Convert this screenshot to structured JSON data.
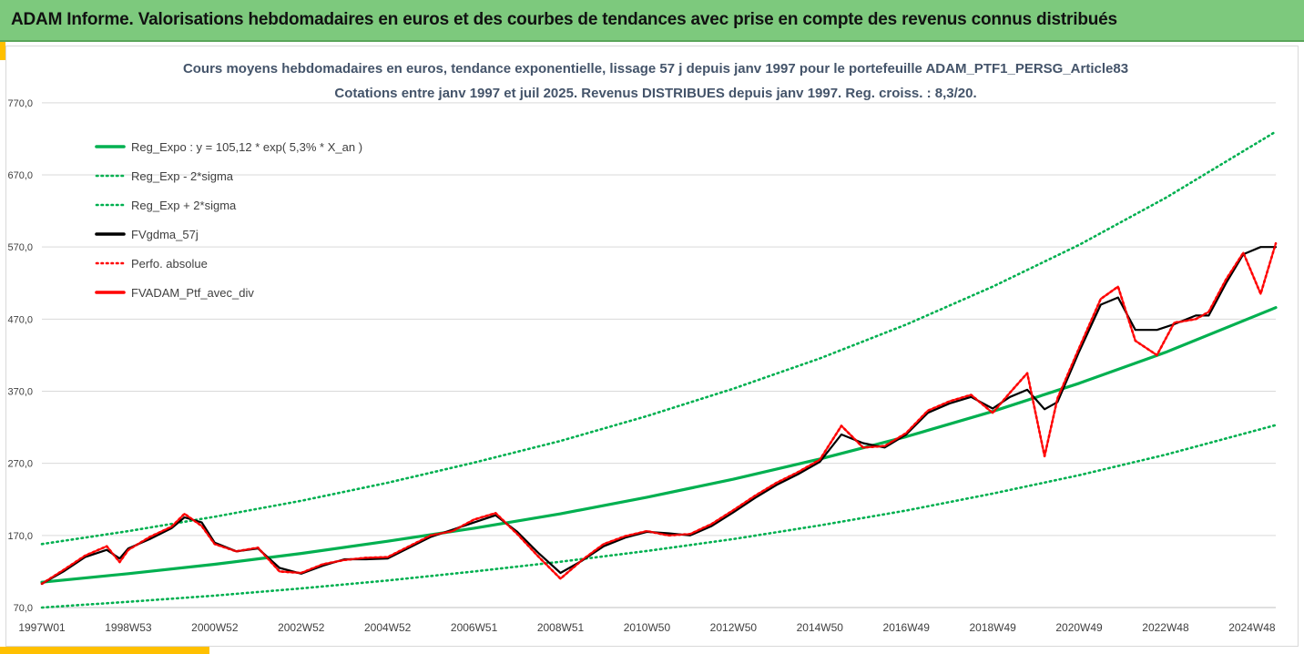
{
  "banner": {
    "title": "ADAM Informe. Valorisations hebdomadaires en euros et des courbes de tendances avec prise en compte des revenus connus distribués"
  },
  "chart_data": {
    "type": "line",
    "title_line1": "Cours moyens hebdomadaires  en euros, tendance exponentielle, lissage 57 j depuis janv 1997 pour le portefeuille ADAM_PTF1_PERSG_Article83",
    "title_line2": "Cotations entre janv 1997 et juil 2025. Revenus DISTRIBUES depuis janv 1997. Reg. croiss. : 8,3/20.",
    "xlabel": "",
    "ylabel": "",
    "x_range": [
      1997.0,
      2025.55
    ],
    "ylim": [
      70,
      790
    ],
    "y_ticks": [
      {
        "value": 70,
        "label": "70,0"
      },
      {
        "value": 170,
        "label": "170,0"
      },
      {
        "value": 270,
        "label": "270,0"
      },
      {
        "value": 370,
        "label": "370,0"
      },
      {
        "value": 470,
        "label": "470,0"
      },
      {
        "value": 570,
        "label": "570,0"
      },
      {
        "value": 670,
        "label": "670,0"
      },
      {
        "value": 770,
        "label": "770,0"
      }
    ],
    "x_ticks": [
      {
        "value": 1997.0,
        "label": "1997W01"
      },
      {
        "value": 1999.0,
        "label": "1998W53"
      },
      {
        "value": 2001.0,
        "label": "2000W52"
      },
      {
        "value": 2003.0,
        "label": "2002W52"
      },
      {
        "value": 2005.0,
        "label": "2004W52"
      },
      {
        "value": 2007.0,
        "label": "2006W51"
      },
      {
        "value": 2009.0,
        "label": "2008W51"
      },
      {
        "value": 2011.0,
        "label": "2010W50"
      },
      {
        "value": 2013.0,
        "label": "2012W50"
      },
      {
        "value": 2015.0,
        "label": "2014W50"
      },
      {
        "value": 2017.0,
        "label": "2016W49"
      },
      {
        "value": 2019.0,
        "label": "2018W49"
      },
      {
        "value": 2021.0,
        "label": "2020W49"
      },
      {
        "value": 2023.0,
        "label": "2022W48"
      },
      {
        "value": 2025.0,
        "label": "2024W48"
      }
    ],
    "grid": "horizontal",
    "legend_position": "top-left",
    "colors": {
      "reg_green": "#00b050",
      "smooth_black": "#000000",
      "perf_red": "#ff0000",
      "grid": "#d9d9d9"
    },
    "series": [
      {
        "name": "Reg_Expo : y = 105,12 * exp( 5,3% *  X_an )",
        "style": "solid",
        "color": "#00b050",
        "x": [
          1997.0,
          1999.0,
          2001.0,
          2003.0,
          2005.0,
          2007.0,
          2009.0,
          2011.0,
          2013.0,
          2015.0,
          2017.0,
          2019.0,
          2021.0,
          2023.0,
          2025.55
        ],
        "values": [
          105.1,
          117.0,
          130.0,
          145.0,
          162.0,
          180.0,
          200.0,
          223.0,
          248.0,
          276.0,
          307.0,
          342.0,
          381.0,
          424.0,
          486.0
        ]
      },
      {
        "name": "Reg_Exp - 2*sigma",
        "style": "dotted",
        "color": "#00b050",
        "x": [
          1997.0,
          1999.0,
          2001.0,
          2003.0,
          2005.0,
          2007.0,
          2009.0,
          2011.0,
          2013.0,
          2015.0,
          2017.0,
          2019.0,
          2021.0,
          2023.0,
          2025.55
        ],
        "values": [
          70.0,
          78.0,
          86.5,
          96.5,
          107.5,
          120.0,
          133.5,
          148.5,
          165.0,
          184.0,
          204.5,
          228.0,
          253.5,
          282.0,
          323.0
        ]
      },
      {
        "name": "Reg_Exp + 2*sigma",
        "style": "dotted",
        "color": "#00b050",
        "x": [
          1997.0,
          1999.0,
          2001.0,
          2003.0,
          2005.0,
          2007.0,
          2009.0,
          2011.0,
          2013.0,
          2015.0,
          2017.0,
          2019.0,
          2021.0,
          2023.0,
          2025.55
        ],
        "values": [
          158.0,
          176.0,
          196.0,
          218.0,
          243.0,
          271.0,
          301.0,
          335.5,
          373.5,
          415.5,
          462.5,
          515.0,
          573.0,
          638.0,
          730.0
        ]
      },
      {
        "name": "FVgdma_57j",
        "style": "solid",
        "color": "#000000",
        "x": [
          1997.0,
          1997.5,
          1998.0,
          1998.5,
          1998.8,
          1999.0,
          1999.5,
          2000.0,
          2000.3,
          2000.7,
          2001.0,
          2001.5,
          2002.0,
          2002.5,
          2003.0,
          2003.5,
          2004.0,
          2004.5,
          2005.0,
          2005.5,
          2006.0,
          2006.5,
          2007.0,
          2007.5,
          2008.0,
          2008.5,
          2009.0,
          2009.5,
          2010.0,
          2010.5,
          2011.0,
          2011.5,
          2012.0,
          2012.5,
          2013.0,
          2013.5,
          2014.0,
          2014.5,
          2015.0,
          2015.5,
          2016.0,
          2016.5,
          2017.0,
          2017.5,
          2018.0,
          2018.5,
          2019.0,
          2019.4,
          2019.8,
          2020.2,
          2020.5,
          2021.0,
          2021.5,
          2021.9,
          2022.3,
          2022.8,
          2023.2,
          2023.7,
          2024.0,
          2024.4,
          2024.8,
          2025.2,
          2025.55
        ],
        "values": [
          103.0,
          120.0,
          140.0,
          150.0,
          138.0,
          152.0,
          165.0,
          180.0,
          195.0,
          188.0,
          160.0,
          148.0,
          152.0,
          125.0,
          117.0,
          128.0,
          137.0,
          137.0,
          138.0,
          153.0,
          168.0,
          178.0,
          188.0,
          198.0,
          175.0,
          145.0,
          118.0,
          135.0,
          155.0,
          167.0,
          175.0,
          173.0,
          170.0,
          183.0,
          202.0,
          222.0,
          240.0,
          255.0,
          272.0,
          310.0,
          298.0,
          292.0,
          310.0,
          340.0,
          353.0,
          362.0,
          346.0,
          362.0,
          372.0,
          345.0,
          355.0,
          425.0,
          490.0,
          500.0,
          455.0,
          455.0,
          463.0,
          475.0,
          475.0,
          520.0,
          560.0,
          570.0,
          570.0
        ]
      },
      {
        "name": "Perfo. absolue",
        "style": "dotted",
        "color": "#ff0000",
        "x": [
          1997.0,
          1997.5,
          1998.0,
          1998.5,
          1998.8,
          1999.0,
          1999.5,
          2000.0,
          2000.3,
          2000.7,
          2001.0,
          2001.5,
          2002.0,
          2002.5,
          2003.0,
          2003.5,
          2004.0,
          2004.5,
          2005.0,
          2005.5,
          2006.0,
          2006.5,
          2007.0,
          2007.5,
          2008.0,
          2008.5,
          2009.0,
          2009.5,
          2010.0,
          2010.5,
          2011.0,
          2011.5,
          2012.0,
          2012.5,
          2013.0,
          2013.5,
          2014.0,
          2014.5,
          2015.0,
          2015.5,
          2016.0,
          2016.5,
          2017.0,
          2017.5,
          2018.0,
          2018.5,
          2019.0,
          2019.4,
          2019.8,
          2020.2,
          2020.5,
          2021.0,
          2021.5,
          2021.9,
          2022.3,
          2022.8,
          2023.2,
          2023.7,
          2024.0,
          2024.4,
          2024.8,
          2025.2,
          2025.55
        ],
        "values": [
          103.0,
          122.0,
          142.0,
          155.0,
          133.0,
          150.0,
          168.0,
          182.0,
          200.0,
          183.0,
          158.0,
          148.0,
          153.0,
          120.0,
          118.0,
          130.0,
          136.0,
          139.0,
          140.0,
          155.0,
          170.0,
          176.0,
          192.0,
          201.0,
          172.0,
          140.0,
          110.0,
          136.0,
          158.0,
          169.0,
          176.0,
          170.0,
          172.0,
          186.0,
          205.0,
          225.0,
          243.0,
          258.0,
          275.0,
          322.0,
          292.0,
          294.0,
          312.0,
          343.0,
          356.0,
          365.0,
          340.0,
          368.0,
          395.0,
          280.0,
          360.0,
          430.0,
          498.0,
          515.0,
          440.0,
          420.0,
          465.0,
          470.0,
          480.0,
          525.0,
          562.0,
          505.0,
          575.0
        ]
      },
      {
        "name": "FVADAM_Ptf_avec_div",
        "style": "solid",
        "color": "#ff0000",
        "x": [
          1997.0,
          1997.5,
          1998.0,
          1998.5,
          1998.8,
          1999.0,
          1999.5,
          2000.0,
          2000.3,
          2000.7,
          2001.0,
          2001.5,
          2002.0,
          2002.5,
          2003.0,
          2003.5,
          2004.0,
          2004.5,
          2005.0,
          2005.5,
          2006.0,
          2006.5,
          2007.0,
          2007.5,
          2008.0,
          2008.5,
          2009.0,
          2009.5,
          2010.0,
          2010.5,
          2011.0,
          2011.5,
          2012.0,
          2012.5,
          2013.0,
          2013.5,
          2014.0,
          2014.5,
          2015.0,
          2015.5,
          2016.0,
          2016.5,
          2017.0,
          2017.5,
          2018.0,
          2018.5,
          2019.0,
          2019.4,
          2019.8,
          2020.2,
          2020.5,
          2021.0,
          2021.5,
          2021.9,
          2022.3,
          2022.8,
          2023.2,
          2023.7,
          2024.0,
          2024.4,
          2024.8,
          2025.2,
          2025.55
        ],
        "values": [
          103.0,
          122.0,
          142.0,
          155.0,
          133.0,
          150.0,
          168.0,
          182.0,
          200.0,
          183.0,
          158.0,
          148.0,
          153.0,
          120.0,
          118.0,
          130.0,
          136.0,
          139.0,
          140.0,
          155.0,
          170.0,
          176.0,
          192.0,
          201.0,
          172.0,
          140.0,
          110.0,
          136.0,
          158.0,
          169.0,
          176.0,
          170.0,
          172.0,
          186.0,
          205.0,
          225.0,
          243.0,
          258.0,
          275.0,
          322.0,
          292.0,
          294.0,
          312.0,
          343.0,
          356.0,
          365.0,
          340.0,
          368.0,
          395.0,
          280.0,
          360.0,
          430.0,
          498.0,
          515.0,
          440.0,
          420.0,
          465.0,
          470.0,
          480.0,
          525.0,
          562.0,
          505.0,
          575.0
        ]
      }
    ]
  }
}
